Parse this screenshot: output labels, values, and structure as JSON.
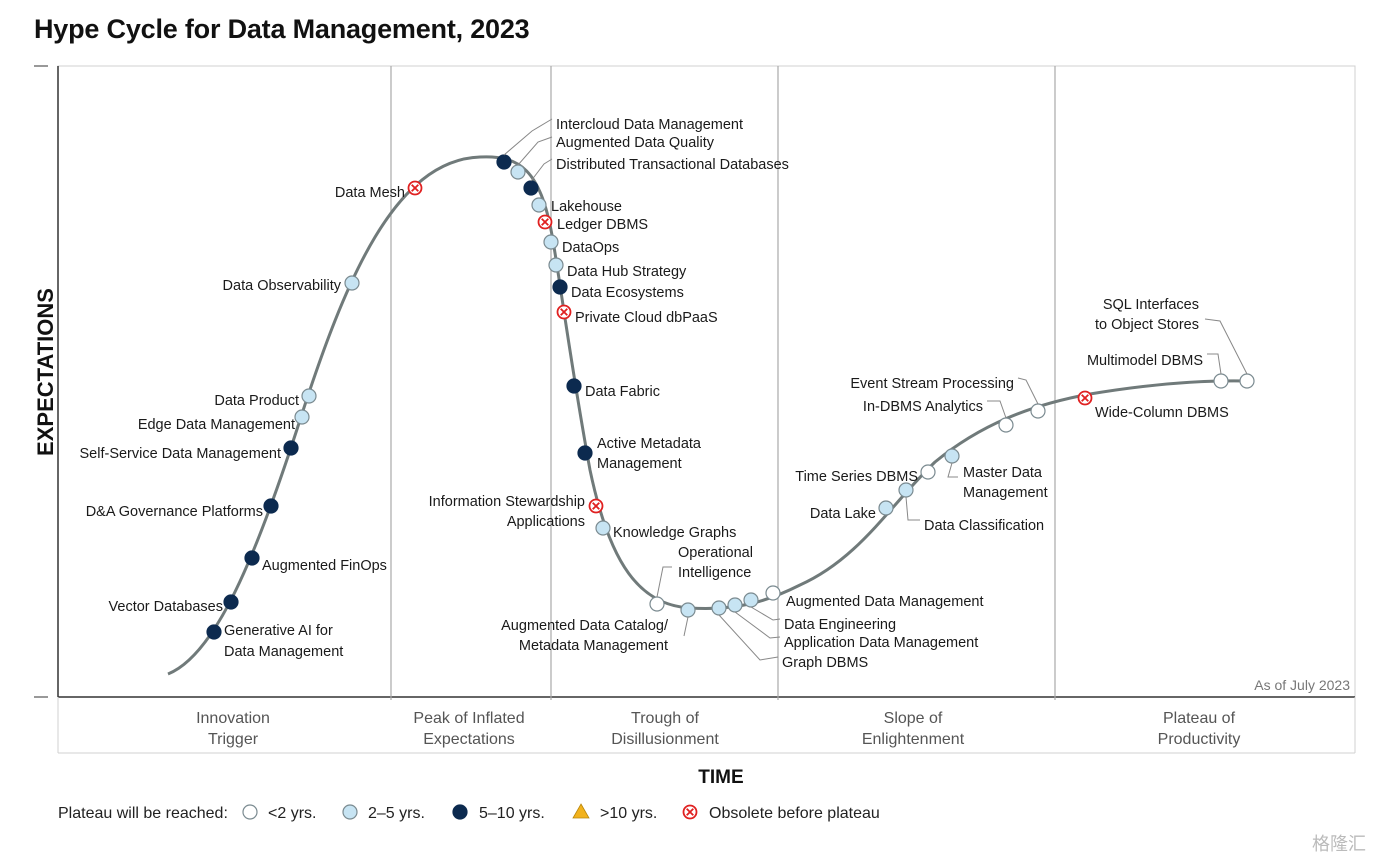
{
  "title": "Hype Cycle for Data Management, 2023",
  "chart_data": {
    "type": "hype-cycle",
    "title": "Hype Cycle for Data Management, 2023",
    "xlabel": "TIME",
    "ylabel": "EXPECTATIONS",
    "as_of": "As of July 2023",
    "phases": [
      {
        "lines": [
          "Innovation",
          "Trigger"
        ]
      },
      {
        "lines": [
          "Peak of Inflated",
          "Expectations"
        ]
      },
      {
        "lines": [
          "Trough of",
          "Disillusionment"
        ]
      },
      {
        "lines": [
          "Slope of",
          "Enlightenment"
        ]
      },
      {
        "lines": [
          "Plateau of",
          "Productivity"
        ]
      }
    ],
    "legend": {
      "label": "Plateau will be reached:",
      "items": [
        {
          "key": "lt2",
          "label": "<2 yrs."
        },
        {
          "key": "2to5",
          "label": "2–5 yrs."
        },
        {
          "key": "5to10",
          "label": "5–10 yrs."
        },
        {
          "key": "gt10",
          "label": ">10 yrs."
        },
        {
          "key": "obs",
          "label": "Obsolete before plateau"
        }
      ]
    },
    "technologies": [
      {
        "label": [
          "Generative AI for",
          "Data Management"
        ],
        "phase": "Innovation Trigger",
        "plateau": "5to10"
      },
      {
        "label": [
          "Vector Databases"
        ],
        "phase": "Innovation Trigger",
        "plateau": "5to10"
      },
      {
        "label": [
          "Augmented FinOps"
        ],
        "phase": "Innovation Trigger",
        "plateau": "5to10"
      },
      {
        "label": [
          "D&A Governance Platforms"
        ],
        "phase": "Innovation Trigger",
        "plateau": "5to10"
      },
      {
        "label": [
          "Self-Service Data Management"
        ],
        "phase": "Innovation Trigger",
        "plateau": "5to10"
      },
      {
        "label": [
          "Edge Data Management"
        ],
        "phase": "Innovation Trigger",
        "plateau": "2to5"
      },
      {
        "label": [
          "Data Product"
        ],
        "phase": "Innovation Trigger",
        "plateau": "2to5"
      },
      {
        "label": [
          "Data Observability"
        ],
        "phase": "Innovation Trigger",
        "plateau": "2to5"
      },
      {
        "label": [
          "Data Mesh"
        ],
        "phase": "Peak of Inflated Expectations",
        "plateau": "obs"
      },
      {
        "label": [
          "Intercloud Data Management"
        ],
        "phase": "Peak of Inflated Expectations",
        "plateau": "5to10"
      },
      {
        "label": [
          "Augmented Data Quality"
        ],
        "phase": "Peak of Inflated Expectations",
        "plateau": "2to5"
      },
      {
        "label": [
          "Distributed Transactional Databases"
        ],
        "phase": "Peak of Inflated Expectations",
        "plateau": "5to10"
      },
      {
        "label": [
          "Lakehouse"
        ],
        "phase": "Peak of Inflated Expectations",
        "plateau": "2to5"
      },
      {
        "label": [
          "Ledger DBMS"
        ],
        "phase": "Peak of Inflated Expectations",
        "plateau": "obs"
      },
      {
        "label": [
          "DataOps"
        ],
        "phase": "Trough of Disillusionment",
        "plateau": "2to5"
      },
      {
        "label": [
          "Data Hub Strategy"
        ],
        "phase": "Trough of Disillusionment",
        "plateau": "2to5"
      },
      {
        "label": [
          "Data Ecosystems"
        ],
        "phase": "Trough of Disillusionment",
        "plateau": "5to10"
      },
      {
        "label": [
          "Private Cloud dbPaaS"
        ],
        "phase": "Trough of Disillusionment",
        "plateau": "obs"
      },
      {
        "label": [
          "Data Fabric"
        ],
        "phase": "Trough of Disillusionment",
        "plateau": "5to10"
      },
      {
        "label": [
          "Active Metadata",
          "Management"
        ],
        "phase": "Trough of Disillusionment",
        "plateau": "5to10"
      },
      {
        "label": [
          "Information Stewardship",
          "Applications"
        ],
        "phase": "Trough of Disillusionment",
        "plateau": "obs"
      },
      {
        "label": [
          "Knowledge Graphs"
        ],
        "phase": "Trough of Disillusionment",
        "plateau": "2to5"
      },
      {
        "label": [
          "Operational",
          "Intelligence"
        ],
        "phase": "Trough of Disillusionment",
        "plateau": "lt2"
      },
      {
        "label": [
          "Augmented Data Catalog/",
          "Metadata Management"
        ],
        "phase": "Trough of Disillusionment",
        "plateau": "2to5"
      },
      {
        "label": [
          "Graph DBMS"
        ],
        "phase": "Trough of Disillusionment",
        "plateau": "2to5"
      },
      {
        "label": [
          "Application Data Management"
        ],
        "phase": "Trough of Disillusionment",
        "plateau": "2to5"
      },
      {
        "label": [
          "Data Engineering"
        ],
        "phase": "Trough of Disillusionment",
        "plateau": "2to5"
      },
      {
        "label": [
          "Augmented Data Management"
        ],
        "phase": "Slope of Enlightenment",
        "plateau": "lt2"
      },
      {
        "label": [
          "Data Lake"
        ],
        "phase": "Slope of Enlightenment",
        "plateau": "2to5"
      },
      {
        "label": [
          "Data Classification"
        ],
        "phase": "Slope of Enlightenment",
        "plateau": "2to5"
      },
      {
        "label": [
          "Time Series DBMS"
        ],
        "phase": "Slope of Enlightenment",
        "plateau": "lt2"
      },
      {
        "label": [
          "Master Data",
          "Management"
        ],
        "phase": "Slope of Enlightenment",
        "plateau": "2to5"
      },
      {
        "label": [
          "In-DBMS Analytics"
        ],
        "phase": "Slope of Enlightenment",
        "plateau": "lt2"
      },
      {
        "label": [
          "Event Stream Processing"
        ],
        "phase": "Slope of Enlightenment",
        "plateau": "lt2"
      },
      {
        "label": [
          "Wide-Column DBMS"
        ],
        "phase": "Plateau of Productivity",
        "plateau": "obs"
      },
      {
        "label": [
          "Multimodel DBMS"
        ],
        "phase": "Plateau of Productivity",
        "plateau": "lt2"
      },
      {
        "label": [
          "SQL Interfaces",
          "to Object Stores"
        ],
        "phase": "Plateau of Productivity",
        "plateau": "lt2"
      }
    ],
    "colors": {
      "curve": "#707a7a",
      "lt2": "#ffffff",
      "2to5": "#c7e4f3",
      "5to10": "#0c2a4f",
      "gt10": "#f2b21c",
      "obs": "#e02020",
      "grid": "#a9a9a9"
    }
  },
  "watermark": "格隆汇"
}
